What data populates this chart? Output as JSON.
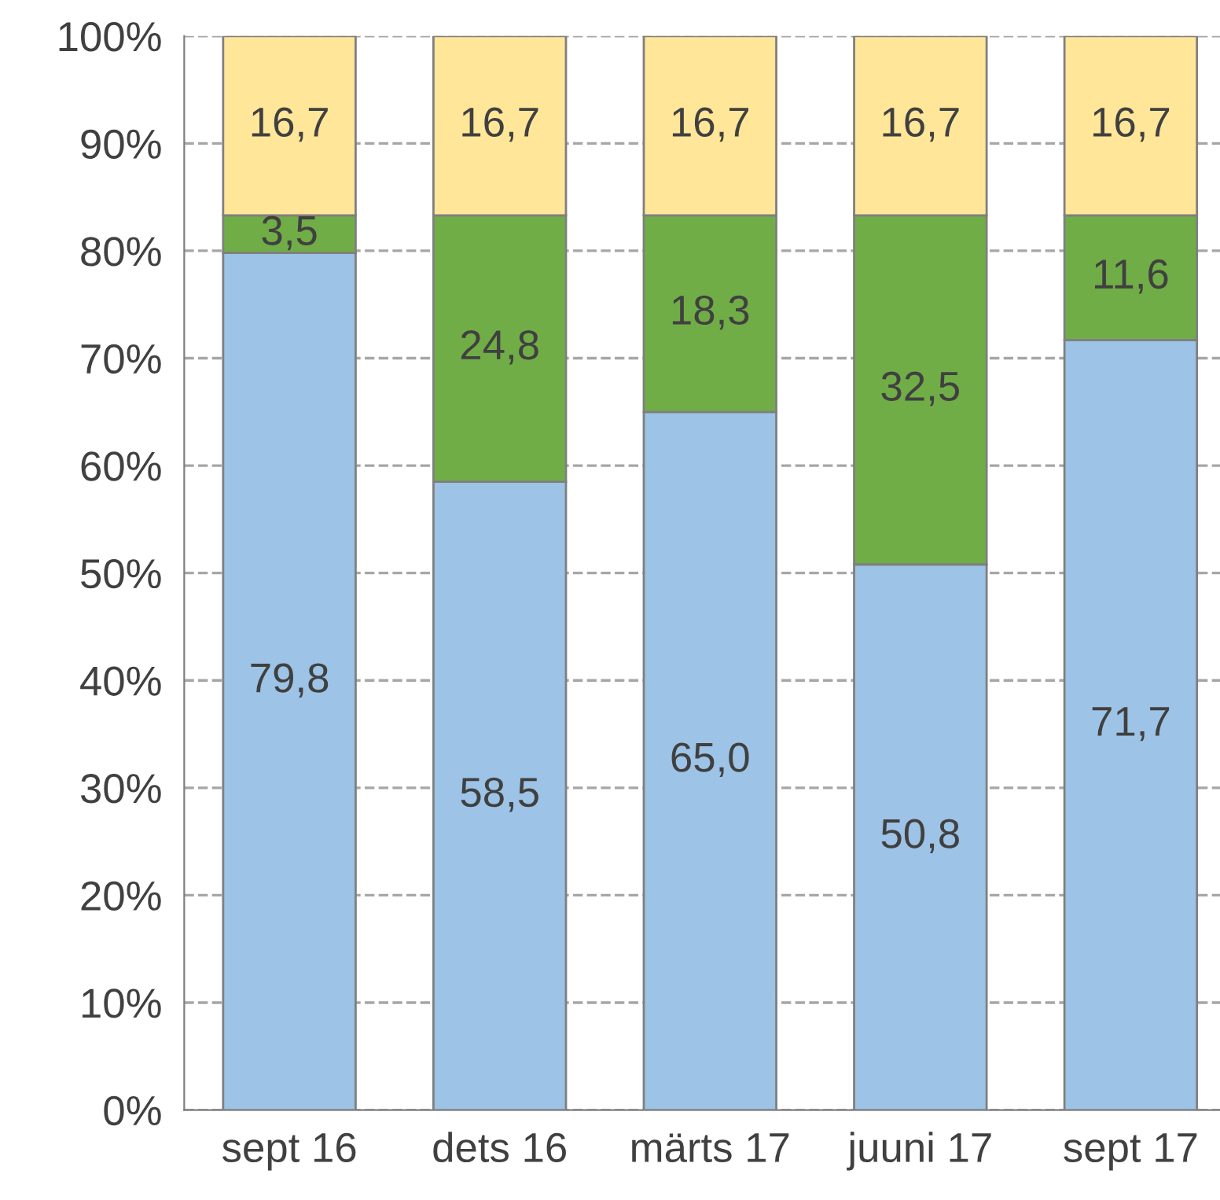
{
  "chart_data": {
    "type": "bar",
    "stacked": true,
    "categories": [
      "sept 16",
      "dets 16",
      "märts 17",
      "juuni 17",
      "sept 17"
    ],
    "series": [
      {
        "color": "#9dc3e6",
        "values": [
          79.8,
          58.5,
          65.0,
          50.8,
          71.7
        ],
        "value_labels": [
          "79,8",
          "58,5",
          "65,0",
          "50,8",
          "71,7"
        ]
      },
      {
        "color": "#70ad47",
        "values": [
          3.5,
          24.8,
          18.3,
          32.5,
          11.6
        ],
        "value_labels": [
          "3,5",
          "24,8",
          "18,3",
          "32,5",
          "11,6"
        ]
      },
      {
        "color": "#ffe699",
        "values": [
          16.7,
          16.7,
          16.7,
          16.7,
          16.7
        ],
        "value_labels": [
          "16,7",
          "16,7",
          "16,7",
          "16,7",
          "16,7"
        ]
      }
    ],
    "ylim": [
      0,
      100
    ],
    "yticks": [
      {
        "value": 0,
        "label": "0%"
      },
      {
        "value": 10,
        "label": "10%"
      },
      {
        "value": 20,
        "label": "20%"
      },
      {
        "value": 30,
        "label": "30%"
      },
      {
        "value": 40,
        "label": "40%"
      },
      {
        "value": 50,
        "label": "50%"
      },
      {
        "value": 60,
        "label": "60%"
      },
      {
        "value": 70,
        "label": "70%"
      },
      {
        "value": 80,
        "label": "80%"
      },
      {
        "value": 90,
        "label": "90%"
      },
      {
        "value": 100,
        "label": "100%"
      }
    ],
    "grid": "y",
    "line_style": "dashed",
    "legend": false
  }
}
